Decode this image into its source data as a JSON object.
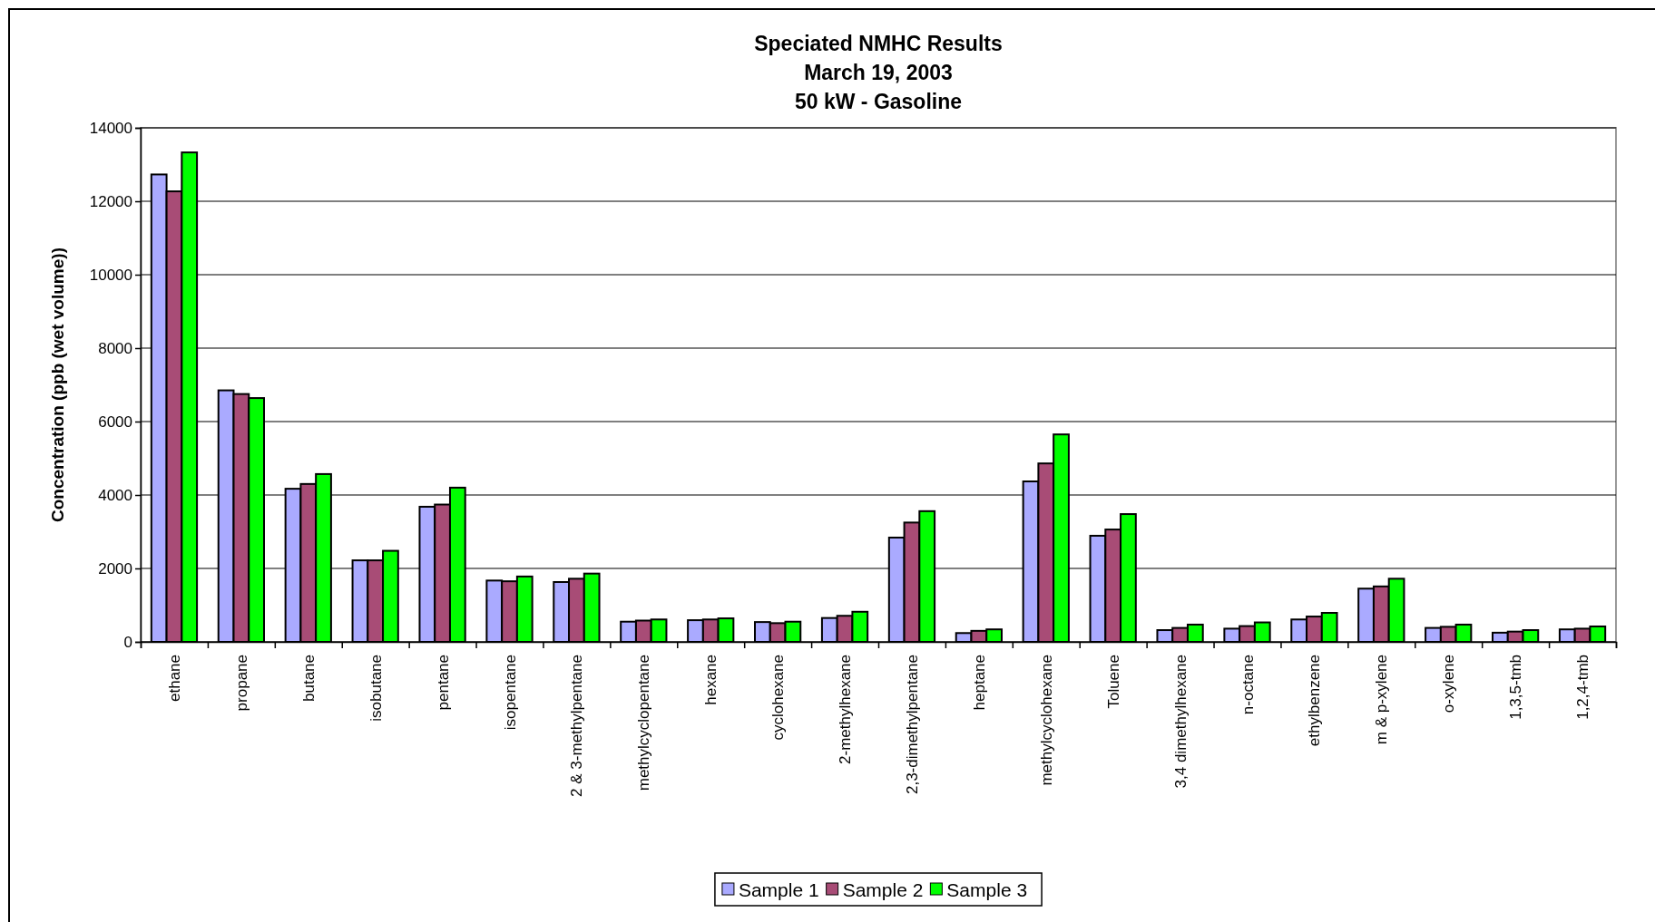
{
  "chart_data": {
    "type": "bar",
    "title": "Speciated NMHC Results\nMarch 19, 2003\n50 kW - Gasoline",
    "ylabel": "Concentration (ppb (wet volume))",
    "categories": [
      "ethane",
      "propane",
      "butane",
      "isobutane",
      "pentane",
      "isopentane",
      "2 & 3-methylpentane",
      "methylcyclopentane",
      "hexane",
      "cyclohexane",
      "2-methylhexane",
      "2,3-dimethylpentane",
      "heptane",
      "methylcyclohexane",
      "Toluene",
      "3,4 dimethylhexane",
      "n-octane",
      "ethylbenzene",
      "m & p-xylene",
      "o-xylene",
      "1,3,5-tmb",
      "1,2,4-tmb"
    ],
    "series": [
      {
        "name": "Sample 1",
        "color": "#aaaaff",
        "values": [
          12730,
          6850,
          4170,
          2220,
          3680,
          1670,
          1630,
          550,
          590,
          540,
          650,
          2840,
          240,
          4370,
          2890,
          320,
          360,
          610,
          1450,
          380,
          250,
          340
        ]
      },
      {
        "name": "Sample 2",
        "color": "#a84c76",
        "values": [
          12270,
          6750,
          4300,
          2220,
          3740,
          1650,
          1720,
          580,
          610,
          510,
          710,
          3250,
          300,
          4860,
          3060,
          380,
          430,
          690,
          1510,
          410,
          280,
          360
        ]
      },
      {
        "name": "Sample 3",
        "color": "#00ff00",
        "values": [
          13330,
          6640,
          4570,
          2480,
          4200,
          1780,
          1860,
          610,
          640,
          550,
          820,
          3560,
          340,
          5650,
          3480,
          470,
          530,
          790,
          1720,
          470,
          320,
          420
        ]
      }
    ],
    "ylim": [
      0,
      14000
    ],
    "yticks": [
      0,
      2000,
      4000,
      6000,
      8000,
      10000,
      12000,
      14000
    ],
    "grid": "y",
    "legend": "bottom"
  }
}
